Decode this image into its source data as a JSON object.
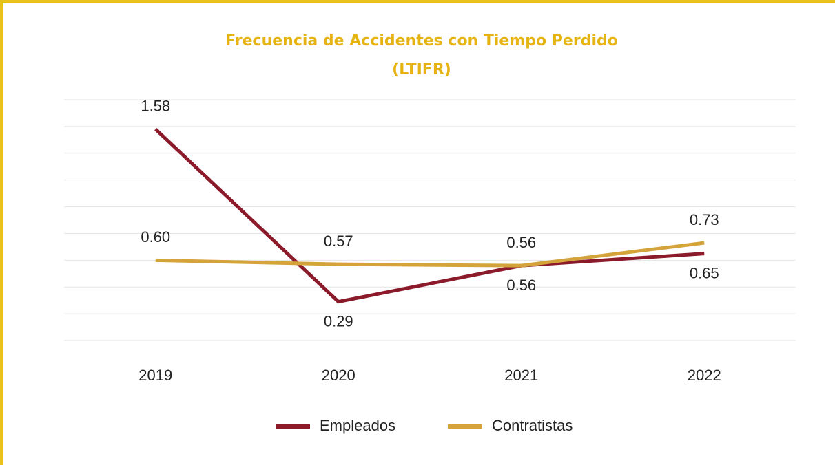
{
  "chart_data": {
    "type": "line",
    "title": [
      "Frecuencia de Accidentes con Tiempo Perdido",
      "(LTIFR)"
    ],
    "categories": [
      "2019",
      "2020",
      "2021",
      "2022"
    ],
    "series": [
      {
        "name": "Empleados",
        "color": "#8b1a2b",
        "values": [
          1.58,
          0.29,
          0.56,
          0.65
        ],
        "value_labels": [
          "1.58",
          "0.29",
          "0.56",
          "0.65"
        ]
      },
      {
        "name": "Contratistas",
        "color": "#d4a43a",
        "values": [
          0.6,
          0.57,
          0.56,
          0.73
        ],
        "value_labels": [
          "0.60",
          "0.57",
          "0.56",
          "0.73"
        ]
      }
    ],
    "ylim": [
      0,
      1.8
    ],
    "yticks": [
      0,
      0.2,
      0.4,
      0.6,
      0.8,
      1.0,
      1.2,
      1.4,
      1.6,
      1.8
    ],
    "grid": true
  }
}
